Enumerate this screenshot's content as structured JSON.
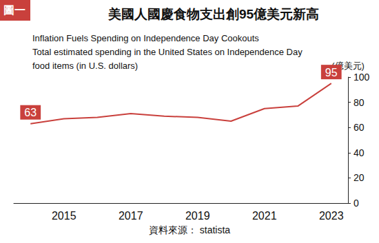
{
  "chart_data": {
    "type": "line",
    "badge": "圖一",
    "title": "美國人國慶食物支出創95億美元新高",
    "subtitle": [
      "Inflation Fuels Spending on Independence Day Cookouts",
      "Total estimated spending in the United States on Independence Day",
      "food items (in U.S. dollars)"
    ],
    "y_label": "(億美元)",
    "source": "資料來源： statista",
    "categories": [
      null,
      "2015",
      null,
      "2017",
      null,
      "2019",
      null,
      "2021",
      null,
      "2023"
    ],
    "values": [
      63,
      67,
      68,
      71,
      69,
      68,
      65,
      75,
      77,
      95
    ],
    "value_labels": [
      "63",
      null,
      null,
      null,
      null,
      null,
      null,
      null,
      null,
      "95"
    ],
    "data_labels": true,
    "color": "#c9403c",
    "ylim": [
      0,
      100
    ],
    "yticks": [
      0,
      20,
      40,
      60,
      80,
      100
    ],
    "grid": false
  }
}
